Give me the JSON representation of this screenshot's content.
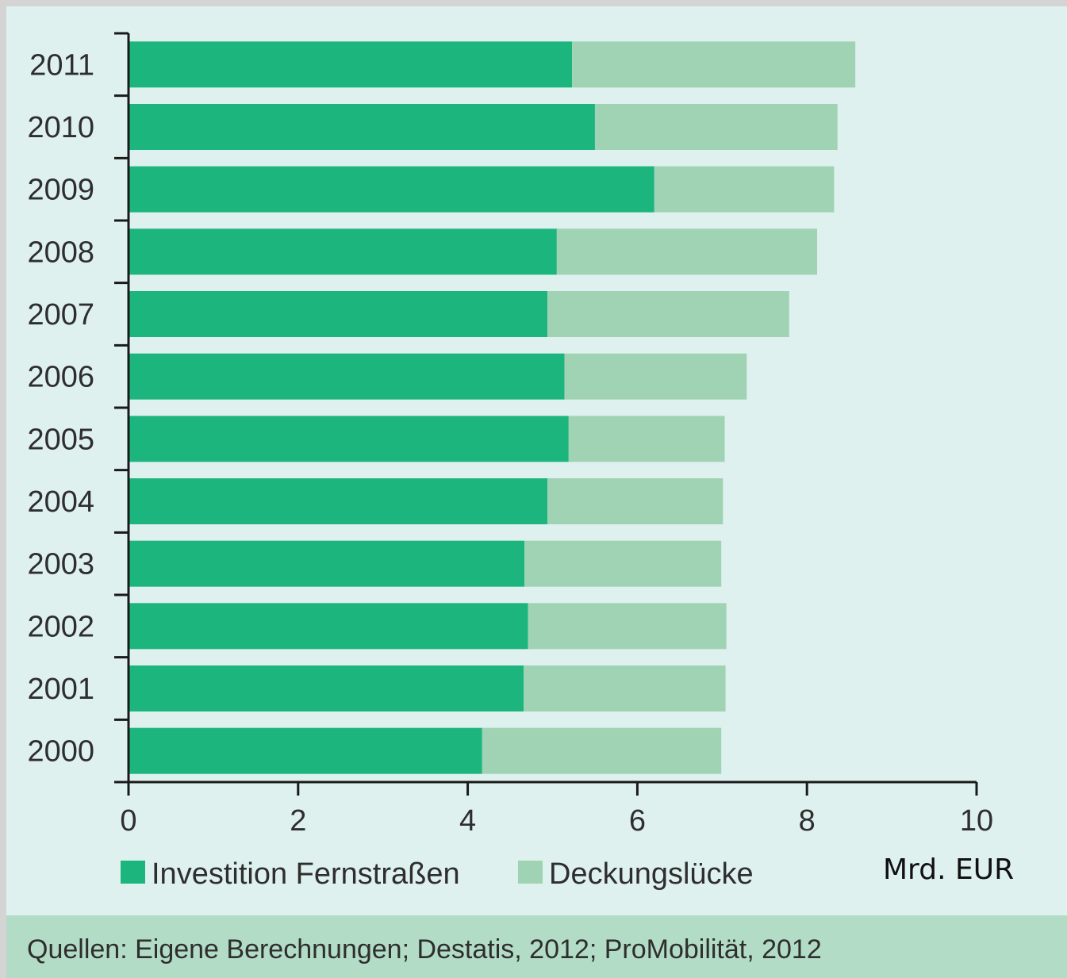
{
  "chart_data": {
    "type": "bar",
    "orientation": "horizontal",
    "stacked": true,
    "categories": [
      "2011",
      "2010",
      "2009",
      "2008",
      "2007",
      "2006",
      "2005",
      "2004",
      "2003",
      "2002",
      "2001",
      "2000"
    ],
    "series": [
      {
        "name": "Investition Fernstraßen",
        "color": "#1db57e",
        "values": [
          5.23,
          5.5,
          6.2,
          5.05,
          4.94,
          5.14,
          5.19,
          4.94,
          4.67,
          4.71,
          4.66,
          4.17
        ]
      },
      {
        "name": "Deckungslücke",
        "color": "#9fd3b4",
        "values": [
          3.34,
          2.86,
          2.12,
          3.07,
          2.85,
          2.15,
          1.84,
          2.07,
          2.32,
          2.34,
          2.38,
          2.82
        ]
      }
    ],
    "xlim": [
      0,
      10
    ],
    "xticks": [
      "0",
      "2",
      "4",
      "6",
      "8",
      "10"
    ],
    "xlabel": "Mrd. EUR",
    "ylabel": "",
    "title": "",
    "grid": false,
    "legend_position": "bottom"
  },
  "footer": {
    "source": "Quellen: Eigene Berechnungen; Destatis, 2012; ProMobilität, 2012"
  }
}
